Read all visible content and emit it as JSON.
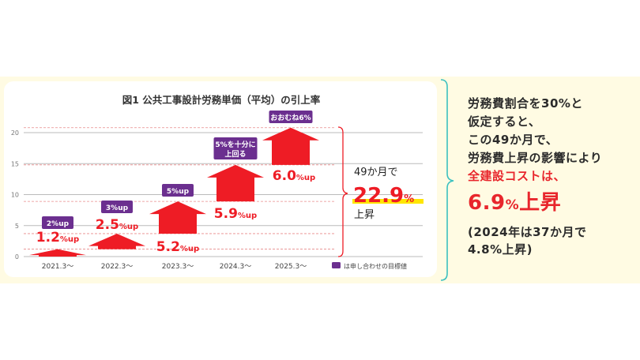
{
  "chart_data": {
    "type": "bar",
    "title": "図1 公共工事設計労務単価（平均）の引上率",
    "categories": [
      "2021.3〜",
      "2022.3〜",
      "2023.3〜",
      "2024.3〜",
      "2025.3〜"
    ],
    "values": [
      1.2,
      2.5,
      5.2,
      5.9,
      6.0
    ],
    "value_labels": [
      "1.2",
      "2.5",
      "5.2",
      "5.9",
      "6.0"
    ],
    "value_unit": "%up",
    "targets": [
      "2%up",
      "3%up",
      "5%up",
      "5%を十分に上回る",
      "おおむね6%"
    ],
    "yticks": [
      0,
      5,
      10,
      15,
      20
    ],
    "ylim": [
      0,
      21
    ],
    "stacked_cumulative": true,
    "grid": true,
    "legend": {
      "label": "は申し合わせの目標値",
      "placement": "bottom-right"
    },
    "total": {
      "prefix": "49か月で",
      "value": "22.9",
      "unit": "%",
      "suffix": "上昇"
    },
    "colors": {
      "arrow": "#ee1c25",
      "target_badge": "#6b2f8f",
      "highlight": "#ffe600",
      "grid": "#bbbbbb",
      "dash": "#e88a8a"
    }
  },
  "side_note": {
    "lines": [
      "労務費割合を30%と",
      "仮定すると、",
      "この49か月で、",
      "労務費上昇の影響により"
    ],
    "highlight_line": "全建設コストは、",
    "big_value": "6.9",
    "big_unit": "%",
    "big_suffix": "上昇",
    "footnote": [
      "(2024年は37か月で",
      "4.8%上昇)"
    ],
    "brace_color": "#3cc1c0"
  }
}
